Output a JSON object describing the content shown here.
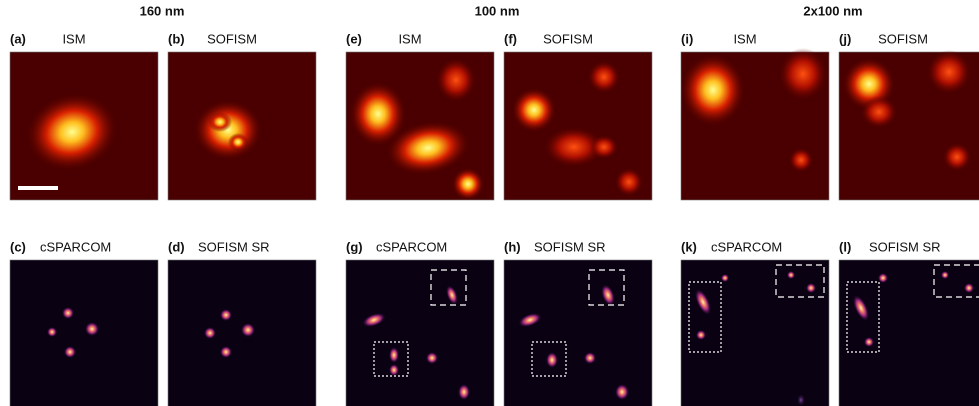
{
  "groups": [
    {
      "title": "160 nm",
      "panels": [
        {
          "letter": "(a)",
          "name": "ISM"
        },
        {
          "letter": "(b)",
          "name": "SOFISM"
        },
        {
          "letter": "(c)",
          "name": "cSPARCOM"
        },
        {
          "letter": "(d)",
          "name": "SOFISM SR"
        }
      ]
    },
    {
      "title": "100 nm",
      "panels": [
        {
          "letter": "(e)",
          "name": "ISM"
        },
        {
          "letter": "(f)",
          "name": "SOFISM"
        },
        {
          "letter": "(g)",
          "name": "cSPARCOM"
        },
        {
          "letter": "(h)",
          "name": "SOFISM SR"
        }
      ]
    },
    {
      "title": "2x100 nm",
      "panels": [
        {
          "letter": "(i)",
          "name": "ISM"
        },
        {
          "letter": "(j)",
          "name": "SOFISM"
        },
        {
          "letter": "(k)",
          "name": "cSPARCOM"
        },
        {
          "letter": "(l)",
          "name": "SOFISM SR"
        }
      ]
    }
  ]
}
